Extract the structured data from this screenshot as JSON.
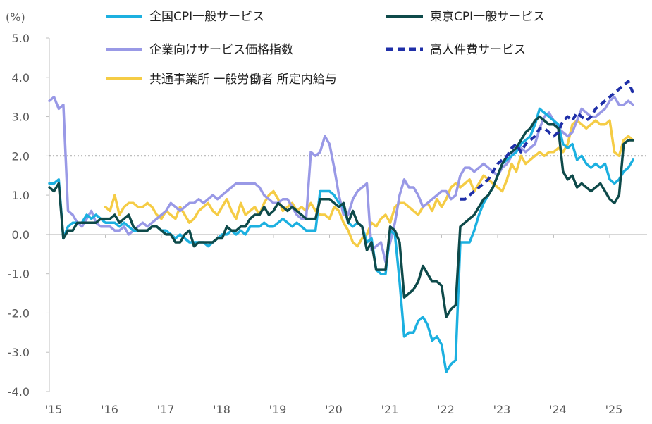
{
  "chart_data": {
    "type": "line",
    "y_unit_label": "(%)",
    "ylim": [
      -4.0,
      5.0
    ],
    "y_ticks": [
      "5.0",
      "4.0",
      "3.0",
      "2.0",
      "1.0",
      "0.0",
      "-1.0",
      "-2.0",
      "-3.0",
      "-4.0"
    ],
    "x_ticks": [
      "'15",
      "'16",
      "'17",
      "'18",
      "'19",
      "'20",
      "'21",
      "'22",
      "'23",
      "'24",
      "'25"
    ],
    "reference_line": {
      "value": 2.0,
      "style": "dotted"
    },
    "grid": false,
    "legend_position": "top",
    "colors": {
      "negative_tick": "#c00000",
      "axis": "#bfbfbf"
    },
    "series": [
      {
        "name": "全国CPI一般サービス",
        "color": "#1cb0e0",
        "dash": "solid",
        "x": [
          2015.0,
          2015.083,
          2015.167,
          2015.25,
          2015.333,
          2015.417,
          2015.5,
          2015.583,
          2015.667,
          2015.75,
          2015.833,
          2015.917,
          2016.0,
          2016.083,
          2016.167,
          2016.25,
          2016.333,
          2016.417,
          2016.5,
          2016.583,
          2016.667,
          2016.75,
          2016.833,
          2016.917,
          2017.0,
          2017.083,
          2017.167,
          2017.25,
          2017.333,
          2017.417,
          2017.5,
          2017.583,
          2017.667,
          2017.75,
          2017.833,
          2017.917,
          2018.0,
          2018.083,
          2018.167,
          2018.25,
          2018.333,
          2018.417,
          2018.5,
          2018.583,
          2018.667,
          2018.75,
          2018.833,
          2018.917,
          2019.0,
          2019.083,
          2019.167,
          2019.25,
          2019.333,
          2019.417,
          2019.5,
          2019.583,
          2019.667,
          2019.75,
          2019.833,
          2019.917,
          2020.0,
          2020.083,
          2020.167,
          2020.25,
          2020.333,
          2020.417,
          2020.5,
          2020.583,
          2020.667,
          2020.75,
          2020.833,
          2020.917,
          2021.0,
          2021.083,
          2021.167,
          2021.25,
          2021.333,
          2021.417,
          2021.5,
          2021.583,
          2021.667,
          2021.75,
          2021.833,
          2021.917,
          2022.0,
          2022.083,
          2022.167,
          2022.25,
          2022.333,
          2022.417,
          2022.5,
          2022.583,
          2022.667,
          2022.75,
          2022.833,
          2022.917,
          2023.0,
          2023.083,
          2023.167,
          2023.25,
          2023.333,
          2023.417,
          2023.5,
          2023.583,
          2023.667,
          2023.75,
          2023.833,
          2023.917,
          2024.0,
          2024.083,
          2024.167,
          2024.25,
          2024.333,
          2024.417,
          2024.5,
          2024.583,
          2024.667,
          2024.75,
          2024.833,
          2024.917,
          2025.0,
          2025.083,
          2025.167,
          2025.25,
          2025.333,
          2025.417
        ],
        "values": [
          1.3,
          1.3,
          1.4,
          -0.1,
          0.2,
          0.3,
          0.3,
          0.3,
          0.5,
          0.4,
          0.5,
          0.4,
          0.3,
          0.3,
          0.3,
          0.2,
          0.3,
          0.2,
          0.1,
          0.1,
          0.1,
          0.1,
          0.2,
          0.2,
          0.1,
          0.1,
          0.0,
          -0.1,
          0.0,
          -0.1,
          -0.2,
          -0.2,
          -0.2,
          -0.2,
          -0.3,
          -0.2,
          -0.1,
          0.0,
          0.0,
          0.1,
          0.0,
          0.1,
          0.0,
          0.2,
          0.2,
          0.2,
          0.3,
          0.2,
          0.2,
          0.3,
          0.4,
          0.3,
          0.2,
          0.3,
          0.2,
          0.1,
          0.1,
          0.1,
          1.1,
          1.1,
          1.1,
          1.0,
          0.8,
          0.7,
          0.3,
          0.2,
          0.3,
          0.2,
          -0.2,
          -0.1,
          -0.9,
          -1.0,
          -1.0,
          0.1,
          0.0,
          -1.2,
          -2.6,
          -2.5,
          -2.5,
          -2.2,
          -2.1,
          -2.3,
          -2.7,
          -2.6,
          -2.8,
          -3.5,
          -3.3,
          -3.2,
          -0.2,
          -0.2,
          -0.2,
          0.1,
          0.5,
          0.8,
          1.0,
          1.2,
          1.5,
          1.8,
          1.9,
          2.0,
          2.1,
          2.3,
          2.4,
          2.5,
          2.8,
          3.2,
          3.1,
          3.0,
          2.9,
          2.8,
          2.3,
          2.2,
          2.3,
          1.9,
          2.0,
          1.8,
          1.7,
          1.8,
          1.7,
          1.8,
          1.4,
          1.3,
          1.4,
          1.6,
          1.7,
          1.9
        ]
      },
      {
        "name": "東京CPI一般サービス",
        "color": "#0e4a4a",
        "dash": "solid",
        "x": [
          2015.0,
          2015.083,
          2015.167,
          2015.25,
          2015.333,
          2015.417,
          2015.5,
          2015.583,
          2015.667,
          2015.75,
          2015.833,
          2015.917,
          2016.0,
          2016.083,
          2016.167,
          2016.25,
          2016.333,
          2016.417,
          2016.5,
          2016.583,
          2016.667,
          2016.75,
          2016.833,
          2016.917,
          2017.0,
          2017.083,
          2017.167,
          2017.25,
          2017.333,
          2017.417,
          2017.5,
          2017.583,
          2017.667,
          2017.75,
          2017.833,
          2017.917,
          2018.0,
          2018.083,
          2018.167,
          2018.25,
          2018.333,
          2018.417,
          2018.5,
          2018.583,
          2018.667,
          2018.75,
          2018.833,
          2018.917,
          2019.0,
          2019.083,
          2019.167,
          2019.25,
          2019.333,
          2019.417,
          2019.5,
          2019.583,
          2019.667,
          2019.75,
          2019.833,
          2019.917,
          2020.0,
          2020.083,
          2020.167,
          2020.25,
          2020.333,
          2020.417,
          2020.5,
          2020.583,
          2020.667,
          2020.75,
          2020.833,
          2020.917,
          2021.0,
          2021.083,
          2021.167,
          2021.25,
          2021.333,
          2021.417,
          2021.5,
          2021.583,
          2021.667,
          2021.75,
          2021.833,
          2021.917,
          2022.0,
          2022.083,
          2022.167,
          2022.25,
          2022.333,
          2022.417,
          2022.5,
          2022.583,
          2022.667,
          2022.75,
          2022.833,
          2022.917,
          2023.0,
          2023.083,
          2023.167,
          2023.25,
          2023.333,
          2023.417,
          2023.5,
          2023.583,
          2023.667,
          2023.75,
          2023.833,
          2023.917,
          2024.0,
          2024.083,
          2024.167,
          2024.25,
          2024.333,
          2024.417,
          2024.5,
          2024.583,
          2024.667,
          2024.75,
          2024.833,
          2024.917,
          2025.0,
          2025.083,
          2025.167,
          2025.25,
          2025.333,
          2025.417
        ],
        "values": [
          1.2,
          1.1,
          1.3,
          -0.1,
          0.1,
          0.1,
          0.3,
          0.3,
          0.3,
          0.3,
          0.3,
          0.4,
          0.4,
          0.4,
          0.5,
          0.3,
          0.4,
          0.5,
          0.2,
          0.1,
          0.1,
          0.1,
          0.2,
          0.2,
          0.1,
          0.0,
          0.0,
          -0.2,
          -0.2,
          0.0,
          0.1,
          -0.3,
          -0.2,
          -0.2,
          -0.2,
          -0.2,
          -0.1,
          -0.1,
          0.2,
          0.1,
          0.1,
          0.2,
          0.2,
          0.4,
          0.5,
          0.5,
          0.7,
          0.5,
          0.6,
          0.8,
          0.7,
          0.6,
          0.7,
          0.6,
          0.5,
          0.4,
          0.4,
          0.4,
          0.9,
          0.9,
          0.9,
          0.8,
          0.7,
          0.8,
          0.3,
          0.6,
          0.3,
          0.2,
          -0.4,
          -0.2,
          -0.9,
          -0.9,
          -0.9,
          0.2,
          0.1,
          -0.2,
          -1.6,
          -1.5,
          -1.4,
          -1.2,
          -0.8,
          -1.0,
          -1.2,
          -1.2,
          -1.3,
          -2.1,
          -1.9,
          -1.8,
          0.2,
          0.3,
          0.4,
          0.5,
          0.7,
          0.9,
          1.0,
          1.2,
          1.5,
          1.8,
          2.0,
          2.1,
          2.2,
          2.4,
          2.6,
          2.7,
          2.9,
          3.0,
          2.9,
          2.8,
          2.8,
          2.7,
          1.6,
          1.4,
          1.5,
          1.2,
          1.3,
          1.2,
          1.1,
          1.2,
          1.3,
          1.1,
          0.9,
          0.8,
          1.0,
          2.3,
          2.4,
          2.4
        ]
      },
      {
        "name": "企業向けサービス価格指数",
        "color": "#9999e6",
        "dash": "solid",
        "x": [
          2015.0,
          2015.083,
          2015.167,
          2015.25,
          2015.333,
          2015.417,
          2015.5,
          2015.583,
          2015.667,
          2015.75,
          2015.833,
          2015.917,
          2016.0,
          2016.083,
          2016.167,
          2016.25,
          2016.333,
          2016.417,
          2016.5,
          2016.583,
          2016.667,
          2016.75,
          2016.833,
          2016.917,
          2017.0,
          2017.083,
          2017.167,
          2017.25,
          2017.333,
          2017.417,
          2017.5,
          2017.583,
          2017.667,
          2017.75,
          2017.833,
          2017.917,
          2018.0,
          2018.083,
          2018.167,
          2018.25,
          2018.333,
          2018.417,
          2018.5,
          2018.583,
          2018.667,
          2018.75,
          2018.833,
          2018.917,
          2019.0,
          2019.083,
          2019.167,
          2019.25,
          2019.333,
          2019.417,
          2019.5,
          2019.583,
          2019.667,
          2019.75,
          2019.833,
          2019.917,
          2020.0,
          2020.083,
          2020.167,
          2020.25,
          2020.333,
          2020.417,
          2020.5,
          2020.583,
          2020.667,
          2020.75,
          2020.833,
          2020.917,
          2021.0,
          2021.083,
          2021.167,
          2021.25,
          2021.333,
          2021.417,
          2021.5,
          2021.583,
          2021.667,
          2021.75,
          2021.833,
          2021.917,
          2022.0,
          2022.083,
          2022.167,
          2022.25,
          2022.333,
          2022.417,
          2022.5,
          2022.583,
          2022.667,
          2022.75,
          2022.833,
          2022.917,
          2023.0,
          2023.083,
          2023.167,
          2023.25,
          2023.333,
          2023.417,
          2023.5,
          2023.583,
          2023.667,
          2023.75,
          2023.833,
          2023.917,
          2024.0,
          2024.083,
          2024.167,
          2024.25,
          2024.333,
          2024.417,
          2024.5,
          2024.583,
          2024.667,
          2024.75,
          2024.833,
          2024.917,
          2025.0,
          2025.083,
          2025.167,
          2025.25,
          2025.333,
          2025.417
        ],
        "values": [
          3.4,
          3.5,
          3.2,
          3.3,
          0.6,
          0.5,
          0.3,
          0.2,
          0.4,
          0.6,
          0.3,
          0.2,
          0.2,
          0.2,
          0.1,
          0.1,
          0.2,
          0.0,
          0.1,
          0.2,
          0.3,
          0.2,
          0.3,
          0.4,
          0.5,
          0.6,
          0.8,
          0.7,
          0.6,
          0.7,
          0.8,
          0.8,
          0.9,
          0.8,
          0.9,
          1.0,
          0.9,
          1.0,
          1.1,
          1.2,
          1.3,
          1.3,
          1.3,
          1.3,
          1.3,
          1.2,
          1.0,
          0.9,
          0.8,
          0.8,
          0.9,
          0.9,
          0.7,
          0.5,
          0.4,
          0.4,
          2.1,
          2.0,
          2.1,
          2.5,
          2.3,
          1.7,
          1.0,
          0.5,
          0.5,
          0.9,
          1.1,
          1.2,
          1.3,
          -0.4,
          -0.3,
          -0.2,
          -0.7,
          -0.2,
          0.3,
          1.0,
          1.4,
          1.2,
          1.2,
          1.0,
          0.7,
          0.8,
          0.9,
          1.0,
          1.1,
          1.1,
          0.9,
          1.0,
          1.5,
          1.7,
          1.7,
          1.6,
          1.7,
          1.8,
          1.7,
          1.6,
          1.5,
          1.7,
          1.8,
          2.0,
          2.2,
          2.2,
          2.1,
          2.2,
          2.3,
          2.7,
          3.0,
          3.1,
          2.9,
          2.7,
          2.6,
          2.5,
          2.6,
          2.9,
          3.2,
          3.1,
          3.0,
          3.0,
          3.1,
          3.2,
          3.4,
          3.5,
          3.3,
          3.3,
          3.4,
          3.3
        ]
      },
      {
        "name": "高人件費サービス",
        "color": "#1f2fa8",
        "dash": "dashed",
        "x": [
          2022.333,
          2022.417,
          2022.5,
          2022.583,
          2022.667,
          2022.75,
          2022.833,
          2022.917,
          2023.0,
          2023.083,
          2023.167,
          2023.25,
          2023.333,
          2023.417,
          2023.5,
          2023.583,
          2023.667,
          2023.75,
          2023.833,
          2023.917,
          2024.0,
          2024.083,
          2024.167,
          2024.25,
          2024.333,
          2024.417,
          2024.5,
          2024.583,
          2024.667,
          2024.75,
          2024.833,
          2024.917,
          2025.0,
          2025.083,
          2025.167,
          2025.25,
          2025.333,
          2025.417
        ],
        "values": [
          0.9,
          0.9,
          1.0,
          1.1,
          1.2,
          1.3,
          1.4,
          1.6,
          1.8,
          1.9,
          2.0,
          2.2,
          2.3,
          2.1,
          2.3,
          2.4,
          2.5,
          2.7,
          2.7,
          2.6,
          2.5,
          2.6,
          2.9,
          3.0,
          2.9,
          3.1,
          3.0,
          2.9,
          3.0,
          3.2,
          3.3,
          3.4,
          3.5,
          3.6,
          3.7,
          3.8,
          3.9,
          3.6
        ]
      },
      {
        "name": "共通事業所 一般労働者 所定内給与",
        "color": "#f5cc45",
        "dash": "solid",
        "x": [
          2016.0,
          2016.083,
          2016.167,
          2016.25,
          2016.333,
          2016.417,
          2016.5,
          2016.583,
          2016.667,
          2016.75,
          2016.833,
          2016.917,
          2017.0,
          2017.083,
          2017.167,
          2017.25,
          2017.333,
          2017.417,
          2017.5,
          2017.583,
          2017.667,
          2017.75,
          2017.833,
          2017.917,
          2018.0,
          2018.083,
          2018.167,
          2018.25,
          2018.333,
          2018.417,
          2018.5,
          2018.583,
          2018.667,
          2018.75,
          2018.833,
          2018.917,
          2019.0,
          2019.083,
          2019.167,
          2019.25,
          2019.333,
          2019.417,
          2019.5,
          2019.583,
          2019.667,
          2019.75,
          2019.833,
          2019.917,
          2020.0,
          2020.083,
          2020.167,
          2020.25,
          2020.333,
          2020.417,
          2020.5,
          2020.583,
          2020.667,
          2020.75,
          2020.833,
          2020.917,
          2021.0,
          2021.083,
          2021.167,
          2021.25,
          2021.333,
          2021.417,
          2021.5,
          2021.583,
          2021.667,
          2021.75,
          2021.833,
          2021.917,
          2022.0,
          2022.083,
          2022.167,
          2022.25,
          2022.333,
          2022.417,
          2022.5,
          2022.583,
          2022.667,
          2022.75,
          2022.833,
          2022.917,
          2023.0,
          2023.083,
          2023.167,
          2023.25,
          2023.333,
          2023.417,
          2023.5,
          2023.583,
          2023.667,
          2023.75,
          2023.833,
          2023.917,
          2024.0,
          2024.083,
          2024.167,
          2024.25,
          2024.333,
          2024.417,
          2024.5,
          2024.583,
          2024.667,
          2024.75,
          2024.833,
          2024.917,
          2025.0,
          2025.083,
          2025.167,
          2025.25,
          2025.333,
          2025.417
        ],
        "values": [
          0.7,
          0.6,
          1.0,
          0.5,
          0.7,
          0.8,
          0.8,
          0.7,
          0.7,
          0.8,
          0.7,
          0.5,
          0.4,
          0.6,
          0.5,
          0.4,
          0.7,
          0.5,
          0.3,
          0.4,
          0.6,
          0.7,
          0.8,
          0.6,
          0.5,
          0.7,
          0.9,
          0.6,
          0.4,
          0.8,
          0.5,
          0.6,
          0.7,
          0.5,
          0.8,
          1.0,
          1.1,
          0.9,
          0.6,
          0.7,
          0.8,
          0.6,
          0.7,
          0.6,
          0.8,
          0.6,
          0.5,
          0.5,
          0.4,
          0.7,
          0.6,
          0.3,
          0.1,
          -0.2,
          -0.3,
          -0.1,
          0.0,
          0.3,
          0.2,
          0.4,
          0.5,
          0.3,
          0.7,
          0.8,
          0.8,
          0.7,
          0.6,
          0.5,
          0.7,
          0.8,
          0.6,
          0.9,
          0.7,
          0.9,
          1.2,
          1.3,
          1.2,
          1.3,
          1.4,
          1.1,
          1.3,
          1.5,
          1.4,
          1.3,
          1.2,
          1.1,
          1.4,
          1.8,
          1.6,
          2.0,
          1.8,
          1.9,
          2.0,
          2.1,
          2.0,
          2.1,
          2.1,
          2.2,
          2.1,
          2.3,
          2.8,
          2.9,
          2.8,
          2.7,
          2.8,
          2.9,
          2.8,
          2.8,
          2.9,
          2.1,
          2.0,
          2.4,
          2.5,
          2.4
        ]
      }
    ]
  }
}
